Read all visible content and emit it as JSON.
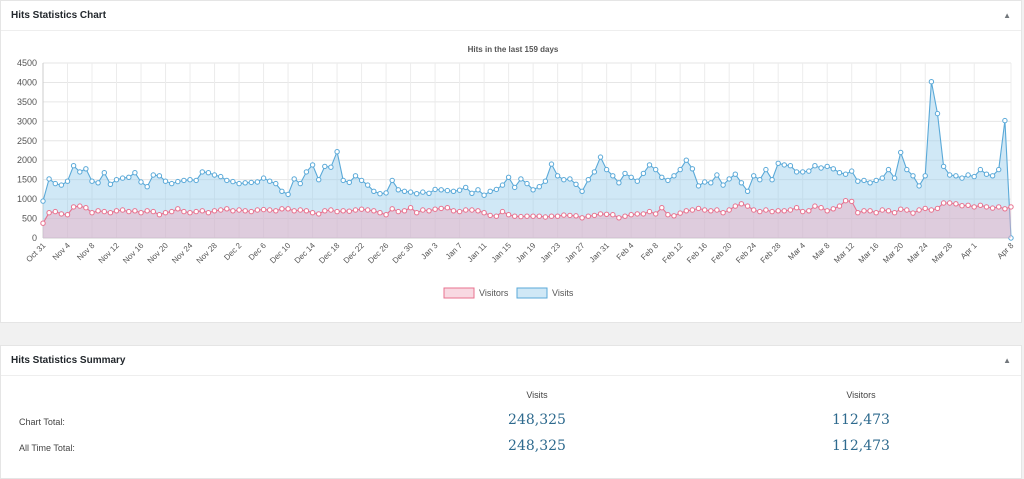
{
  "chart_panel": {
    "title": "Hits Statistics Chart"
  },
  "summary_panel": {
    "title": "Hits Statistics Summary",
    "col_visits": "Visits",
    "col_visitors": "Visitors",
    "rows": [
      {
        "label": "Chart Total:",
        "visits": "248,325",
        "visitors": "112,473"
      },
      {
        "label": "All Time Total:",
        "visits": "248,325",
        "visitors": "112,473"
      }
    ]
  },
  "colors": {
    "visits": "#5aa9d8",
    "visits_fill": "rgba(151,205,236,0.45)",
    "visitors": "#e8728f",
    "visitors_fill": "rgba(240,170,190,0.45)",
    "accent": "#2e6a8e"
  },
  "chart_data": {
    "type": "line",
    "title": "Hits in the last 159 days",
    "ylim": [
      0,
      4500
    ],
    "yticks": [
      0,
      500,
      1000,
      1500,
      2000,
      2500,
      3000,
      3500,
      4000,
      4500
    ],
    "tick_labels": [
      "Oct 31",
      "Nov 4",
      "Nov 8",
      "Nov 12",
      "Nov 16",
      "Nov 20",
      "Nov 24",
      "Nov 28",
      "Dec 2",
      "Dec 6",
      "Dec 10",
      "Dec 14",
      "Dec 18",
      "Dec 22",
      "Dec 26",
      "Dec 30",
      "Jan 3",
      "Jan 7",
      "Jan 11",
      "Jan 15",
      "Jan 19",
      "Jan 23",
      "Jan 27",
      "Jan 31",
      "Feb 4",
      "Feb 8",
      "Feb 12",
      "Feb 16",
      "Feb 20",
      "Feb 24",
      "Feb 28",
      "Mar 4",
      "Mar 8",
      "Mar 12",
      "Mar 16",
      "Mar 20",
      "Mar 24",
      "Mar 28",
      "Apr 1",
      "Apr 8"
    ],
    "legend_position": "bottom",
    "series": [
      {
        "name": "Visitors",
        "values": [
          380,
          650,
          680,
          620,
          600,
          800,
          820,
          780,
          650,
          700,
          680,
          650,
          700,
          720,
          680,
          700,
          650,
          700,
          680,
          600,
          650,
          680,
          750,
          680,
          650,
          680,
          700,
          650,
          700,
          720,
          750,
          700,
          720,
          700,
          680,
          720,
          730,
          720,
          700,
          750,
          750,
          700,
          720,
          700,
          650,
          620,
          700,
          720,
          680,
          700,
          690,
          720,
          740,
          720,
          700,
          650,
          600,
          750,
          680,
          700,
          780,
          650,
          720,
          700,
          740,
          760,
          780,
          700,
          680,
          720,
          720,
          700,
          650,
          580,
          560,
          680,
          600,
          560,
          550,
          560,
          560,
          560,
          540,
          560,
          560,
          590,
          580,
          570,
          520,
          560,
          580,
          620,
          610,
          600,
          520,
          560,
          600,
          620,
          620,
          680,
          620,
          780,
          600,
          570,
          640,
          700,
          720,
          760,
          720,
          700,
          720,
          650,
          720,
          820,
          880,
          820,
          720,
          680,
          720,
          680,
          700,
          700,
          720,
          780,
          680,
          700,
          820,
          780,
          700,
          750,
          820,
          960,
          940,
          650,
          700,
          700,
          650,
          720,
          700,
          650,
          740,
          720,
          640,
          720,
          760,
          720,
          760,
          900,
          900,
          880,
          830,
          840,
          800,
          840,
          800,
          770,
          800,
          750,
          800
        ]
      },
      {
        "name": "Visits",
        "values": [
          950,
          1520,
          1400,
          1360,
          1460,
          1860,
          1700,
          1780,
          1460,
          1420,
          1680,
          1380,
          1500,
          1540,
          1560,
          1680,
          1440,
          1320,
          1620,
          1600,
          1460,
          1400,
          1450,
          1480,
          1500,
          1480,
          1700,
          1680,
          1620,
          1580,
          1480,
          1450,
          1400,
          1420,
          1430,
          1440,
          1540,
          1460,
          1400,
          1200,
          1120,
          1520,
          1400,
          1700,
          1880,
          1500,
          1840,
          1820,
          2220,
          1480,
          1430,
          1600,
          1480,
          1360,
          1200,
          1140,
          1160,
          1480,
          1240,
          1200,
          1180,
          1140,
          1180,
          1150,
          1250,
          1240,
          1220,
          1200,
          1230,
          1300,
          1150,
          1240,
          1100,
          1200,
          1250,
          1360,
          1560,
          1300,
          1520,
          1400,
          1240,
          1320,
          1460,
          1900,
          1600,
          1500,
          1520,
          1380,
          1200,
          1500,
          1700,
          2080,
          1760,
          1600,
          1420,
          1660,
          1560,
          1460,
          1660,
          1880,
          1760,
          1560,
          1480,
          1600,
          1760,
          2000,
          1780,
          1340,
          1440,
          1420,
          1620,
          1360,
          1520,
          1640,
          1420,
          1200,
          1600,
          1500,
          1760,
          1500,
          1920,
          1880,
          1860,
          1700,
          1700,
          1720,
          1860,
          1800,
          1840,
          1780,
          1680,
          1640,
          1720,
          1460,
          1480,
          1420,
          1480,
          1540,
          1760,
          1540,
          2200,
          1760,
          1600,
          1340,
          1600,
          4020,
          3200,
          1840,
          1620,
          1600,
          1540,
          1620,
          1580,
          1760,
          1640,
          1600,
          1760,
          3020,
          0
        ]
      }
    ]
  }
}
